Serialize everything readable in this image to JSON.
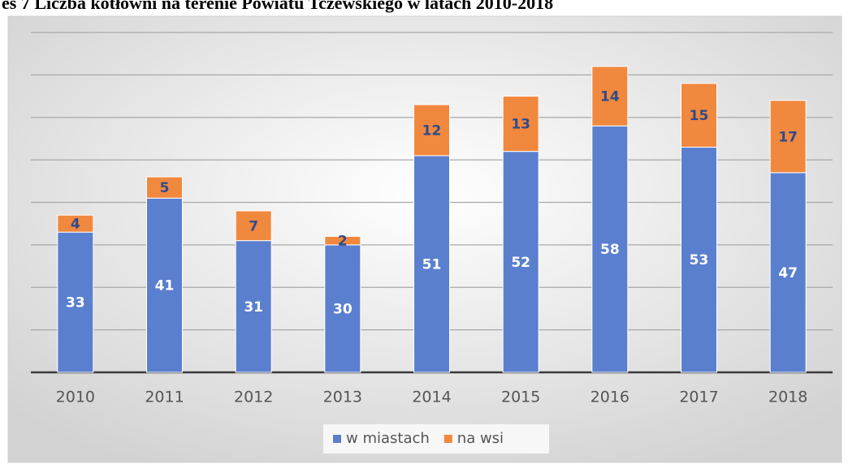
{
  "chart_data": {
    "type": "stacked_bar",
    "title": "es 7 Liczba kotłowni na terenie Powiatu Tczewskiego w latach 2010-2018",
    "categories": [
      "2010",
      "2011",
      "2012",
      "2013",
      "2014",
      "2015",
      "2016",
      "2017",
      "2018"
    ],
    "series": [
      {
        "name": "w miastach",
        "color": "#5b7fcf",
        "label_color": "#ffffff",
        "values": [
          33,
          41,
          31,
          30,
          51,
          52,
          58,
          53,
          47
        ]
      },
      {
        "name": "na wsi",
        "color": "#f0883e",
        "label_color": "#2f4b8c",
        "values": [
          4,
          5,
          7,
          2,
          12,
          13,
          14,
          15,
          17
        ]
      }
    ],
    "ylim": [
      0,
      80
    ],
    "yticks": [
      0,
      10,
      20,
      30,
      40,
      50,
      60,
      70,
      80
    ],
    "grid": true,
    "legend": "bottom"
  }
}
